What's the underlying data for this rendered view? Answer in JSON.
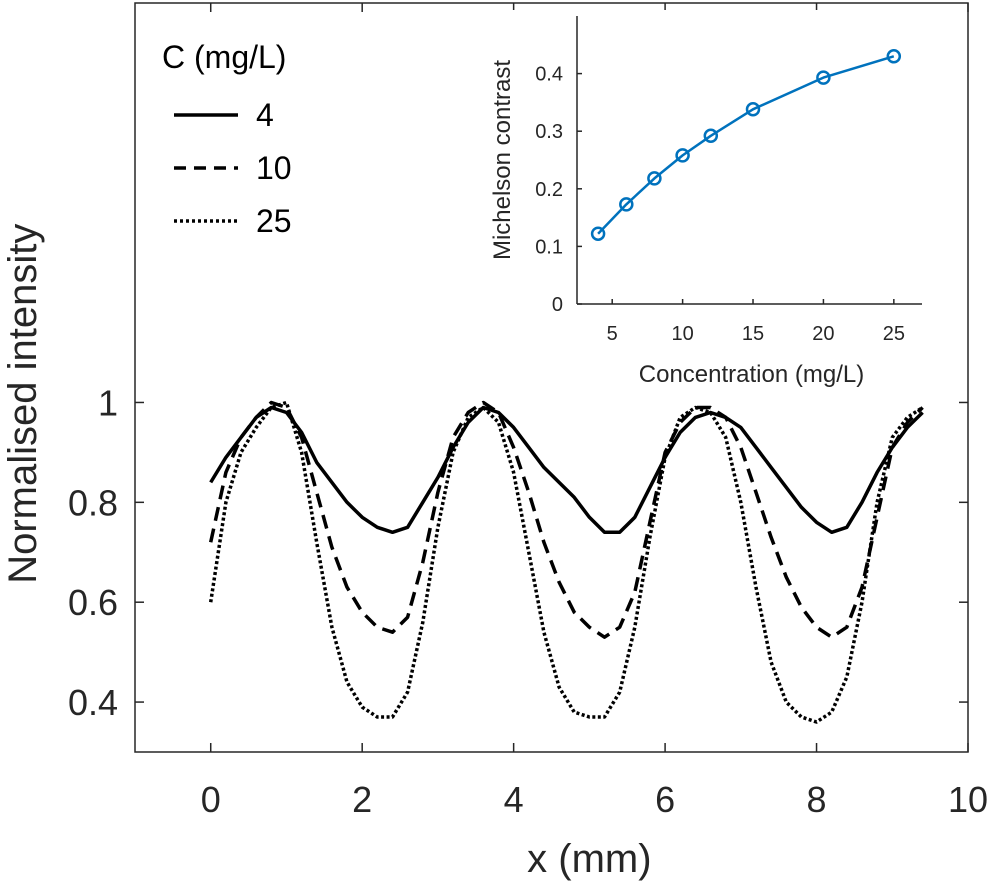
{
  "chart_data": [
    {
      "type": "line",
      "xlabel": "x (mm)",
      "ylabel": "Normalised intensity",
      "xlim": [
        -1,
        10
      ],
      "ylim": [
        0.3,
        1.8
      ],
      "xticks": [
        0,
        2,
        4,
        6,
        8,
        10
      ],
      "xtick_labels": [
        "0",
        "2",
        "4",
        "6",
        "8",
        "10"
      ],
      "yticks": [
        0.4,
        0.6,
        0.8,
        1.0
      ],
      "ytick_labels": [
        "0.4",
        "0.6",
        "0.8",
        "1"
      ],
      "grid": false,
      "legend": {
        "title": "C (mg/L)",
        "placement": "top-left",
        "entries": [
          "4",
          "10",
          "25"
        ]
      },
      "series": [
        {
          "name": "4",
          "line_style": "solid",
          "color": "#000000",
          "x": [
            0,
            0.2,
            0.4,
            0.6,
            0.8,
            1.0,
            1.2,
            1.4,
            1.6,
            1.8,
            2.0,
            2.2,
            2.4,
            2.6,
            2.8,
            3.0,
            3.2,
            3.4,
            3.6,
            3.8,
            4.0,
            4.2,
            4.4,
            4.6,
            4.8,
            5.0,
            5.2,
            5.4,
            5.6,
            5.8,
            6.0,
            6.2,
            6.4,
            6.6,
            6.8,
            7.0,
            7.2,
            7.4,
            7.6,
            7.8,
            8.0,
            8.2,
            8.4,
            8.6,
            8.8,
            9.0,
            9.2,
            9.4
          ],
          "y": [
            0.84,
            0.89,
            0.93,
            0.97,
            0.99,
            0.98,
            0.94,
            0.88,
            0.84,
            0.8,
            0.77,
            0.75,
            0.74,
            0.75,
            0.8,
            0.85,
            0.91,
            0.96,
            0.99,
            0.98,
            0.95,
            0.91,
            0.87,
            0.84,
            0.81,
            0.77,
            0.74,
            0.74,
            0.77,
            0.83,
            0.89,
            0.94,
            0.97,
            0.98,
            0.97,
            0.95,
            0.91,
            0.87,
            0.83,
            0.79,
            0.76,
            0.74,
            0.75,
            0.8,
            0.86,
            0.91,
            0.95,
            0.98
          ]
        },
        {
          "name": "10",
          "line_style": "dashed",
          "color": "#000000",
          "x": [
            0,
            0.2,
            0.4,
            0.6,
            0.8,
            1.0,
            1.2,
            1.4,
            1.6,
            1.8,
            2.0,
            2.2,
            2.4,
            2.6,
            2.8,
            3.0,
            3.2,
            3.4,
            3.6,
            3.8,
            4.0,
            4.2,
            4.4,
            4.6,
            4.8,
            5.0,
            5.2,
            5.4,
            5.6,
            5.8,
            6.0,
            6.2,
            6.4,
            6.6,
            6.8,
            7.0,
            7.2,
            7.4,
            7.6,
            7.8,
            8.0,
            8.2,
            8.4,
            8.6,
            8.8,
            9.0,
            9.2,
            9.4
          ],
          "y": [
            0.72,
            0.86,
            0.93,
            0.97,
            1.0,
            0.99,
            0.93,
            0.82,
            0.71,
            0.63,
            0.58,
            0.55,
            0.54,
            0.57,
            0.68,
            0.82,
            0.93,
            0.98,
            1.0,
            0.98,
            0.91,
            0.82,
            0.72,
            0.64,
            0.58,
            0.55,
            0.53,
            0.55,
            0.62,
            0.76,
            0.9,
            0.96,
            0.99,
            0.99,
            0.97,
            0.91,
            0.82,
            0.73,
            0.65,
            0.59,
            0.55,
            0.53,
            0.55,
            0.63,
            0.77,
            0.91,
            0.96,
            0.99
          ]
        },
        {
          "name": "25",
          "line_style": "dotted",
          "color": "#000000",
          "x": [
            0,
            0.2,
            0.4,
            0.6,
            0.8,
            1.0,
            1.2,
            1.4,
            1.6,
            1.8,
            2.0,
            2.2,
            2.4,
            2.6,
            2.8,
            3.0,
            3.2,
            3.4,
            3.6,
            3.8,
            4.0,
            4.2,
            4.4,
            4.6,
            4.8,
            5.0,
            5.2,
            5.4,
            5.6,
            5.8,
            6.0,
            6.2,
            6.4,
            6.6,
            6.8,
            7.0,
            7.2,
            7.4,
            7.6,
            7.8,
            8.0,
            8.2,
            8.4,
            8.6,
            8.8,
            9.0,
            9.2,
            9.4
          ],
          "y": [
            0.6,
            0.8,
            0.9,
            0.95,
            0.99,
            1.0,
            0.9,
            0.72,
            0.55,
            0.44,
            0.39,
            0.37,
            0.37,
            0.42,
            0.56,
            0.75,
            0.9,
            0.97,
            0.99,
            0.96,
            0.86,
            0.7,
            0.54,
            0.43,
            0.38,
            0.37,
            0.37,
            0.42,
            0.55,
            0.73,
            0.89,
            0.97,
            0.99,
            0.98,
            0.93,
            0.8,
            0.63,
            0.48,
            0.4,
            0.37,
            0.36,
            0.38,
            0.45,
            0.6,
            0.8,
            0.93,
            0.97,
            0.99
          ]
        }
      ]
    },
    {
      "type": "line",
      "xlabel": "Concentration (mg/L)",
      "ylabel": "Michelson contrast",
      "xlim": [
        2.5,
        27
      ],
      "ylim": [
        0,
        0.5
      ],
      "xticks": [
        5,
        10,
        15,
        20,
        25
      ],
      "xtick_labels": [
        "5",
        "10",
        "15",
        "20",
        "25"
      ],
      "yticks": [
        0,
        0.1,
        0.2,
        0.3,
        0.4
      ],
      "ytick_labels": [
        "0",
        "0.1",
        "0.2",
        "0.3",
        "0.4"
      ],
      "grid": false,
      "series": [
        {
          "line_style": "solid",
          "marker": "circle",
          "color": "#0072BD",
          "x": [
            4,
            6,
            8,
            10,
            12,
            15,
            20,
            25
          ],
          "y": [
            0.122,
            0.173,
            0.218,
            0.258,
            0.292,
            0.338,
            0.393,
            0.43
          ]
        }
      ]
    }
  ]
}
